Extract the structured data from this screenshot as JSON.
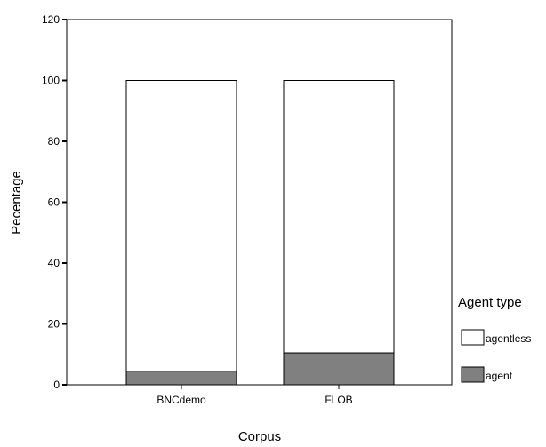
{
  "chart_data": {
    "type": "bar",
    "stacked": true,
    "title": "",
    "xlabel": "Corpus",
    "ylabel": "Pecentage",
    "categories": [
      "BNCdemo",
      "FLOB"
    ],
    "series": [
      {
        "name": "agent",
        "values": [
          4.5,
          10.5
        ],
        "color": "#808080"
      },
      {
        "name": "agentless",
        "values": [
          95.5,
          89.5
        ],
        "color": "#ffffff"
      }
    ],
    "ylim": [
      0,
      120
    ],
    "yticks": [
      0,
      20,
      40,
      60,
      80,
      100,
      120
    ],
    "grid": false,
    "legend": {
      "title": "Agent type",
      "placement": "right",
      "entries": [
        "agentless",
        "agent"
      ]
    }
  }
}
